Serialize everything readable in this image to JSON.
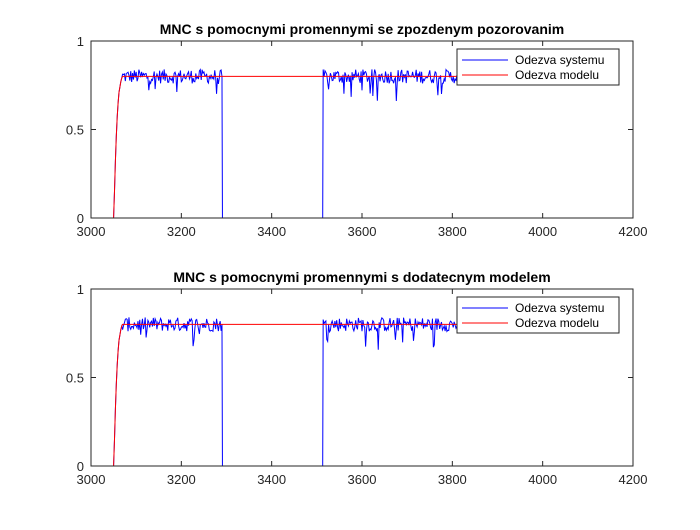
{
  "chart_data": [
    {
      "type": "line",
      "title": "MNC s pomocnymi promennymi se zpozdenym pozorovanim",
      "xlabel": "",
      "ylabel": "",
      "xlim": [
        3000,
        4200
      ],
      "ylim": [
        0,
        1
      ],
      "xticks": [
        3000,
        3200,
        3400,
        3600,
        3800,
        4000,
        4200
      ],
      "yticks": [
        0,
        0.5,
        1
      ],
      "grid": false,
      "legend_position": "top-right",
      "series": [
        {
          "name": "Odezva systemu",
          "color": "#0000ff",
          "points": [
            [
              3050,
              0.0
            ],
            [
              3052,
              0.15
            ],
            [
              3054,
              0.32
            ],
            [
              3056,
              0.46
            ],
            [
              3058,
              0.57
            ],
            [
              3060,
              0.65
            ],
            [
              3062,
              0.71
            ],
            [
              3064,
              0.74
            ],
            [
              3066,
              0.77
            ],
            [
              3068,
              0.79
            ],
            [
              3070,
              0.8
            ],
            [
              3290,
              0.8
            ],
            [
              3291,
              0.0
            ],
            [
              3513,
              0.0
            ],
            [
              3514,
              0.8
            ],
            [
              3820,
              0.8
            ]
          ],
          "noise_amplitude": 0.04
        },
        {
          "name": "Odezva modelu",
          "color": "#ff0000",
          "points": [
            [
              3050,
              0.0
            ],
            [
              3052,
              0.15
            ],
            [
              3054,
              0.32
            ],
            [
              3056,
              0.46
            ],
            [
              3058,
              0.57
            ],
            [
              3060,
              0.65
            ],
            [
              3062,
              0.71
            ],
            [
              3064,
              0.74
            ],
            [
              3066,
              0.77
            ],
            [
              3068,
              0.79
            ],
            [
              3070,
              0.8
            ],
            [
              3820,
              0.8
            ]
          ],
          "noise_amplitude": 0
        }
      ]
    },
    {
      "type": "line",
      "title": "MNC s pomocnymi promennymi s dodatecnym modelem",
      "xlabel": "",
      "ylabel": "",
      "xlim": [
        3000,
        4200
      ],
      "ylim": [
        0,
        1
      ],
      "xticks": [
        3000,
        3200,
        3400,
        3600,
        3800,
        4000,
        4200
      ],
      "yticks": [
        0,
        0.5,
        1
      ],
      "grid": false,
      "legend_position": "top-right",
      "series": [
        {
          "name": "Odezva systemu",
          "color": "#0000ff",
          "points": [
            [
              3050,
              0.0
            ],
            [
              3052,
              0.15
            ],
            [
              3054,
              0.32
            ],
            [
              3056,
              0.46
            ],
            [
              3058,
              0.57
            ],
            [
              3060,
              0.65
            ],
            [
              3062,
              0.71
            ],
            [
              3064,
              0.74
            ],
            [
              3066,
              0.77
            ],
            [
              3068,
              0.79
            ],
            [
              3070,
              0.8
            ],
            [
              3290,
              0.8
            ],
            [
              3291,
              0.0
            ],
            [
              3513,
              0.0
            ],
            [
              3514,
              0.8
            ],
            [
              3820,
              0.8
            ]
          ],
          "noise_amplitude": 0.04
        },
        {
          "name": "Odezva modelu",
          "color": "#ff0000",
          "points": [
            [
              3050,
              0.0
            ],
            [
              3052,
              0.15
            ],
            [
              3054,
              0.32
            ],
            [
              3056,
              0.46
            ],
            [
              3058,
              0.57
            ],
            [
              3060,
              0.65
            ],
            [
              3062,
              0.71
            ],
            [
              3064,
              0.74
            ],
            [
              3066,
              0.77
            ],
            [
              3068,
              0.79
            ],
            [
              3070,
              0.8
            ],
            [
              3820,
              0.8
            ]
          ],
          "noise_amplitude": 0
        }
      ]
    }
  ]
}
